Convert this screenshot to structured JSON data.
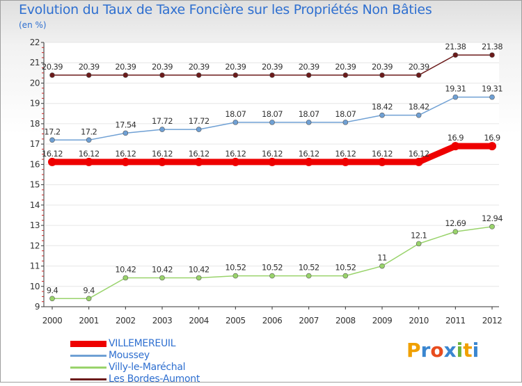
{
  "title": "Evolution du Taux de Taxe Foncière sur les Propriétés Non Bâties",
  "unit": "(en %)",
  "logo": {
    "text": "Proxiti",
    "letters": [
      "P",
      "r",
      "o",
      "x",
      "i",
      "t",
      "i"
    ],
    "colors": [
      "#f0a000",
      "#3a86d0",
      "#e84c1e",
      "#3a86d0",
      "#6db33f",
      "#f0a000",
      "#3a86d0"
    ]
  },
  "chart_data": {
    "type": "line",
    "title": "Evolution du Taux de Taxe Foncière sur les Propriétés Non Bâties",
    "ylabel": "(en %)",
    "xlabel": "",
    "x": [
      "2000",
      "2001",
      "2002",
      "2003",
      "2004",
      "2005",
      "2006",
      "2007",
      "2008",
      "2009",
      "2010",
      "2011",
      "2012"
    ],
    "ylim": [
      9,
      22
    ],
    "yticks": [
      9,
      10,
      11,
      12,
      13,
      14,
      15,
      16,
      17,
      18,
      19,
      20,
      21,
      22
    ],
    "series": [
      {
        "name": "Les Bordes-Aumont",
        "color": "#6b1a1a",
        "values": [
          20.39,
          20.39,
          20.39,
          20.39,
          20.39,
          20.39,
          20.39,
          20.39,
          20.39,
          20.39,
          20.39,
          21.38,
          21.38
        ],
        "labels": [
          "20.39",
          "20.39",
          "20.39",
          "20.39",
          "20.39",
          "20.39",
          "20.39",
          "20.39",
          "20.39",
          "20.39",
          "20.39",
          "21.38",
          "21.38"
        ]
      },
      {
        "name": "Moussey",
        "color": "#6fa0d4",
        "values": [
          17.2,
          17.2,
          17.54,
          17.72,
          17.72,
          18.07,
          18.07,
          18.07,
          18.07,
          18.42,
          18.42,
          19.31,
          19.31
        ],
        "labels": [
          "17.2",
          "17.2",
          "17.54",
          "17.72",
          "17.72",
          "18.07",
          "18.07",
          "18.07",
          "18.07",
          "18.42",
          "18.42",
          "19.31",
          "19.31"
        ]
      },
      {
        "name": "VILLEMEREUIL",
        "color": "#ee0000",
        "values": [
          16.12,
          16.12,
          16.12,
          16.12,
          16.12,
          16.12,
          16.12,
          16.12,
          16.12,
          16.12,
          16.12,
          16.9,
          16.9
        ],
        "labels": [
          "16.12",
          "16.12",
          "16.12",
          "16.12",
          "16.12",
          "16.12",
          "16.12",
          "16.12",
          "16.12",
          "16.12",
          "16.12",
          "16.9",
          "16.9"
        ]
      },
      {
        "name": "Villy-le-Maréchal",
        "color": "#99d36b",
        "values": [
          9.4,
          9.4,
          10.42,
          10.42,
          10.42,
          10.52,
          10.52,
          10.52,
          10.52,
          11,
          12.1,
          12.69,
          12.94
        ],
        "labels": [
          "9.4",
          "9.4",
          "10.42",
          "10.42",
          "10.42",
          "10.52",
          "10.52",
          "10.52",
          "10.52",
          "11",
          "12.1",
          "12.69",
          "12.94"
        ]
      }
    ],
    "legend": [
      {
        "name": "VILLEMEREUIL",
        "color": "#ee0000"
      },
      {
        "name": "Moussey",
        "color": "#6fa0d4"
      },
      {
        "name": "Villy-le-Maréchal",
        "color": "#99d36b"
      },
      {
        "name": "Les Bordes-Aumont",
        "color": "#6b1a1a"
      }
    ],
    "legend_position": "bottom-left"
  }
}
